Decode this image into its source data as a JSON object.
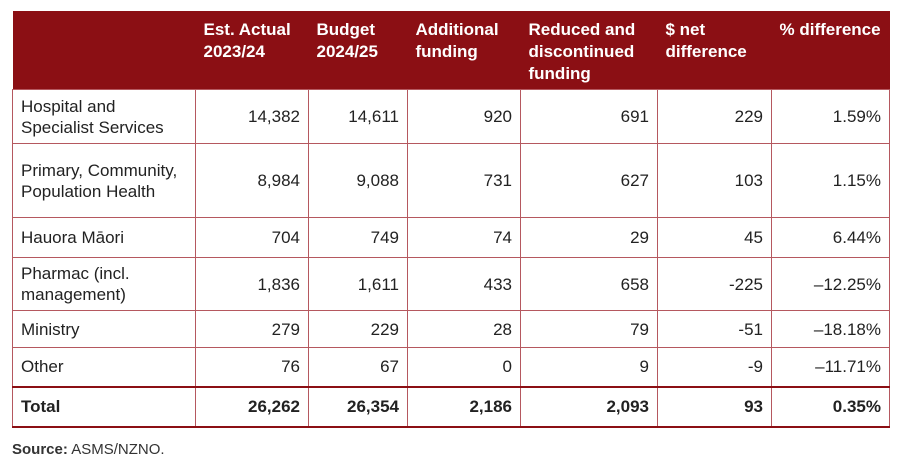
{
  "table": {
    "headers": [
      "",
      "Est. Actual 2023/24",
      "Budget 2024/25",
      "Additional funding",
      "Reduced and discontinued funding",
      "$ net difference",
      "% difference"
    ],
    "rows": [
      [
        "Hospital and Specialist Services",
        "14,382",
        "14,611",
        "920",
        "691",
        "229",
        "1.59%"
      ],
      [
        "Primary, Community, Population Health",
        "8,984",
        "9,088",
        "731",
        "627",
        "103",
        "1.15%"
      ],
      [
        "Hauora Māori",
        "704",
        "749",
        "74",
        "29",
        "45",
        "6.44%"
      ],
      [
        "Pharmac (incl. management)",
        "1,836",
        "1,611",
        "433",
        "658",
        "-225",
        "–12.25%"
      ],
      [
        "Ministry",
        "279",
        "229",
        "28",
        "79",
        "-51",
        "–18.18%"
      ],
      [
        "Other",
        "76",
        "67",
        "0",
        "9",
        "-9",
        "–11.71%"
      ]
    ],
    "total": [
      "Total",
      "26,262",
      "26,354",
      "2,186",
      "2,093",
      "93",
      "0.35%"
    ]
  },
  "source": {
    "label": "Source:",
    "text": "ASMS/NZNO."
  },
  "colors": {
    "header_bg": "#8b0f14",
    "header_text": "#ffffff",
    "border": "#b5585f"
  }
}
